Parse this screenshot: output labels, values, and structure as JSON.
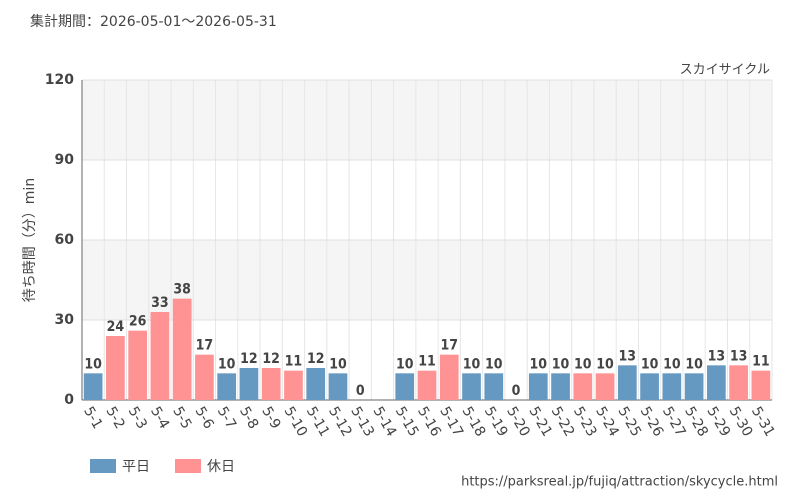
{
  "chart_data": {
    "type": "bar",
    "title": "集計期間：2026-05-01～2026-05-31",
    "subtitle": "スカイサイクル",
    "y_label": "待ち時間（分）min",
    "source": "https://parksreal.jp/fujiq/attraction/skycycle.html",
    "categories": [
      "5-1",
      "5-2",
      "5-3",
      "5-4",
      "5-5",
      "5-6",
      "5-7",
      "5-8",
      "5-9",
      "5-10",
      "5-11",
      "5-12",
      "5-13",
      "5-14",
      "5-15",
      "5-16",
      "5-17",
      "5-18",
      "5-19",
      "5-20",
      "5-21",
      "5-22",
      "5-23",
      "5-24",
      "5-25",
      "5-26",
      "5-27",
      "5-28",
      "5-29",
      "5-30",
      "5-31"
    ],
    "series": [
      {
        "name": "平日",
        "color": "#6699c2",
        "values": [
          10,
          null,
          null,
          null,
          null,
          null,
          10,
          12,
          null,
          null,
          12,
          10,
          0,
          null,
          10,
          null,
          null,
          10,
          10,
          0,
          10,
          10,
          null,
          null,
          13,
          10,
          10,
          10,
          13,
          null,
          null
        ]
      },
      {
        "name": "休日",
        "color": "#ff9393",
        "values": [
          null,
          24,
          26,
          33,
          38,
          17,
          null,
          null,
          12,
          11,
          null,
          null,
          null,
          null,
          null,
          11,
          17,
          null,
          null,
          null,
          null,
          null,
          10,
          10,
          null,
          null,
          null,
          null,
          null,
          13,
          11
        ]
      }
    ],
    "ylim": [
      0,
      120
    ],
    "yticks": [
      0,
      30,
      60,
      90,
      120
    ],
    "grid": true
  }
}
